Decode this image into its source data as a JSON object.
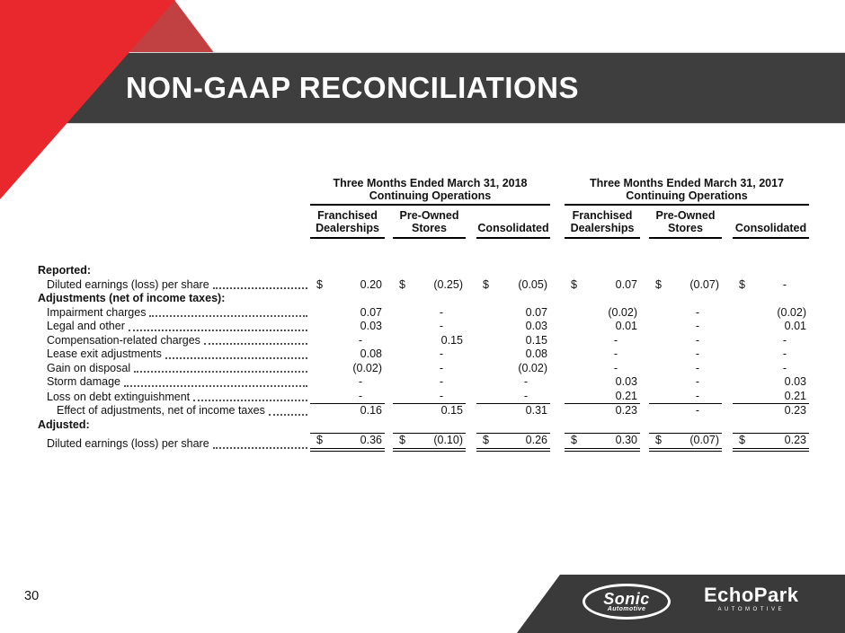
{
  "slide": {
    "title": "NON-GAAP RECONCILIATIONS",
    "page_number": "30"
  },
  "theme": {
    "accent_red": "#e8282c",
    "accent_dark_red": "#c14042",
    "band_gray": "#3e3e3e",
    "footer_gray": "#3a3a3a"
  },
  "table": {
    "groups": [
      {
        "period": "Three Months Ended March 31, 2018",
        "subtitle": "Continuing Operations"
      },
      {
        "period": "Three Months Ended March 31, 2017",
        "subtitle": "Continuing Operations"
      }
    ],
    "columns": [
      "Franchised\nDealerships",
      "Pre-Owned\nStores",
      "Consolidated",
      "Franchised\nDealerships",
      "Pre-Owned\nStores",
      "Consolidated"
    ],
    "rows": [
      {
        "label": "Reported:",
        "type": "section"
      },
      {
        "label": "Diluted earnings (loss) per share",
        "type": "item",
        "indent": 1,
        "dollar": true,
        "values": [
          "0.20",
          "(0.25)",
          "(0.05)",
          "0.07",
          "(0.07)",
          "-"
        ]
      },
      {
        "label": "Adjustments (net of income taxes):",
        "type": "section"
      },
      {
        "label": "Impairment charges",
        "type": "item",
        "indent": 1,
        "values": [
          "0.07",
          "-",
          "0.07",
          "(0.02)",
          "-",
          "(0.02)"
        ]
      },
      {
        "label": "Legal and other",
        "type": "item",
        "indent": 1,
        "values": [
          "0.03",
          "-",
          "0.03",
          "0.01",
          "-",
          "0.01"
        ]
      },
      {
        "label": "Compensation-related charges",
        "type": "item",
        "indent": 1,
        "values": [
          "-",
          "0.15",
          "0.15",
          "-",
          "-",
          "-"
        ]
      },
      {
        "label": "Lease exit adjustments",
        "type": "item",
        "indent": 1,
        "values": [
          "0.08",
          "-",
          "0.08",
          "-",
          "-",
          "-"
        ]
      },
      {
        "label": "Gain on disposal",
        "type": "item",
        "indent": 1,
        "values": [
          "(0.02)",
          "-",
          "(0.02)",
          "-",
          "-",
          "-"
        ]
      },
      {
        "label": "Storm damage",
        "type": "item",
        "indent": 1,
        "values": [
          "-",
          "-",
          "-",
          "0.03",
          "-",
          "0.03"
        ]
      },
      {
        "label": "Loss on debt extinguishment",
        "type": "item",
        "indent": 1,
        "rule": "sum",
        "values": [
          "-",
          "-",
          "-",
          "0.21",
          "-",
          "0.21"
        ]
      },
      {
        "label": "Effect of adjustments, net of income taxes",
        "type": "item",
        "indent": 2,
        "values": [
          "0.16",
          "0.15",
          "0.31",
          "0.23",
          "-",
          "0.23"
        ]
      },
      {
        "label": "Adjusted:",
        "type": "section"
      },
      {
        "label": "Diluted earnings (loss) per share",
        "type": "item",
        "indent": 1,
        "dollar": true,
        "rule": "total",
        "values": [
          "0.36",
          "(0.10)",
          "0.26",
          "0.30",
          "(0.07)",
          "0.23"
        ]
      }
    ]
  },
  "footer": {
    "sonic": {
      "name": "Sonic",
      "sub": "Automotive"
    },
    "echopark": {
      "name": "EchoPark",
      "sub": "AUTOMOTIVE"
    }
  }
}
